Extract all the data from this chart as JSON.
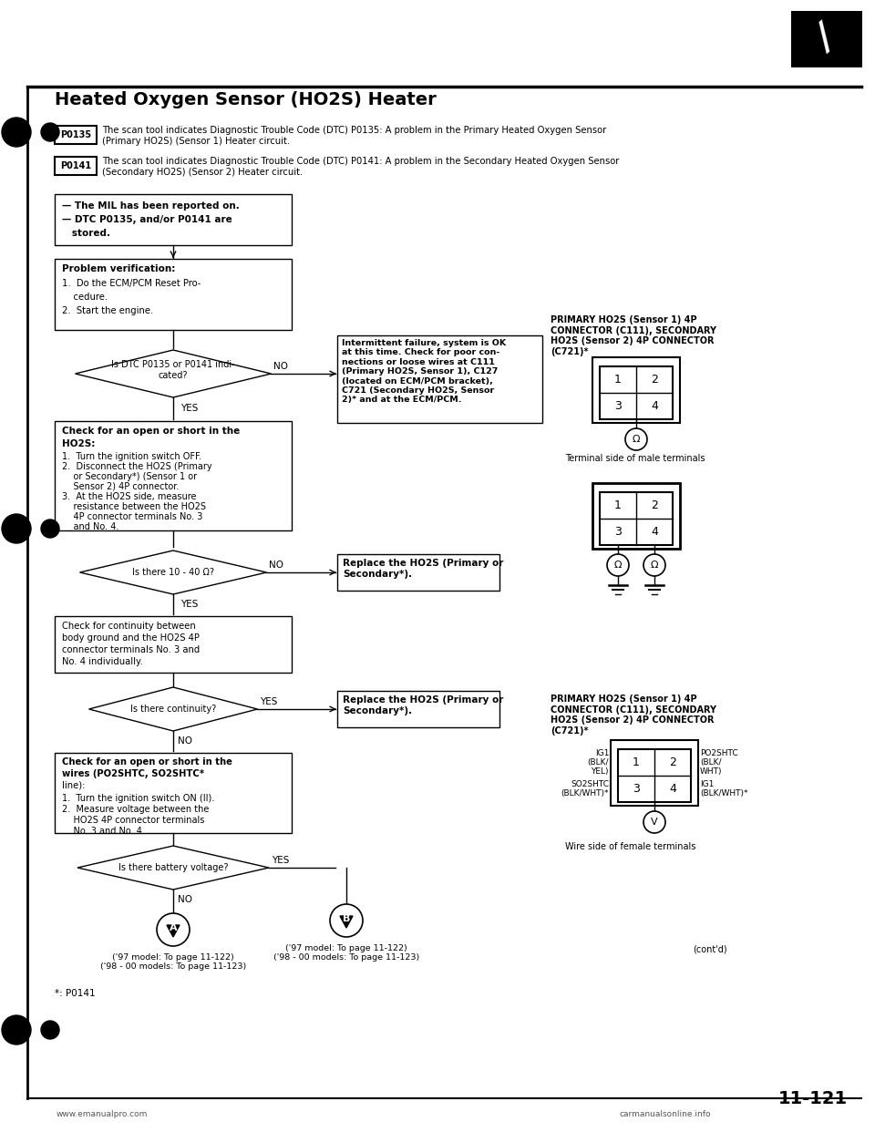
{
  "title": "Heated Oxygen Sensor (HO2S) Heater",
  "bg_color": "#ffffff",
  "page_number": "11-121",
  "dtc_p0135_text": "The scan tool indicates Diagnostic Trouble Code (DTC) P0135: A problem in the Primary Heated Oxygen Sensor\n(Primary HO2S) (Sensor 1) Heater circuit.",
  "dtc_p0141_text": "The scan tool indicates Diagnostic Trouble Code (DTC) P0141: A problem in the Secondary Heated Oxygen Sensor\n(Secondary HO2S) (Sensor 2) Heater circuit.",
  "box1_lines": [
    "— The MIL has been reported on.",
    "— DTC P0135, and/or P0141 are",
    "   stored."
  ],
  "box2_title": "Problem verification:",
  "box2_lines": [
    "1.  Do the ECM/PCM Reset Pro-",
    "    cedure.",
    "2.  Start the engine."
  ],
  "diamond1_text": "Is DTC P0135 or P0141 indi-\ncated?",
  "intermittent_text": "Intermittent failure, system is OK\nat this time. Check for poor con-\nnections or loose wires at C111\n(Primary HO2S, Sensor 1), C127\n(located on ECM/PCM bracket),\nC721 (Secondary HO2S, Sensor\n2)* and at the ECM/PCM.",
  "box3_title_bold": "Check for an open or short in the\nHO2S:",
  "box3_lines": [
    "1.  Turn the ignition switch OFF.",
    "2.  Disconnect the HO2S (Primary",
    "    or Secondary*) (Sensor 1 or",
    "    Sensor 2) 4P connector.",
    "3.  At the HO2S side, measure",
    "    resistance between the HO2S",
    "    4P connector terminals No. 3",
    "    and No. 4."
  ],
  "diamond2_text": "Is there 10 - 40 Ω?",
  "replace_box1_text": "Replace the HO2S (Primary or\nSecondary*).",
  "box4_lines": [
    "Check for continuity between",
    "body ground and the HO2S 4P",
    "connector terminals No. 3 and",
    "No. 4 individually."
  ],
  "diamond3_text": "Is there continuity?",
  "replace_box2_text": "Replace the HO2S (Primary or\nSecondary*).",
  "box5_title_bold": "Check for an open or short in the\nwires (PO2SHTC, SO2SHTC*\nline):",
  "box5_lines": [
    "1.  Turn the ignition switch ON (II).",
    "2.  Measure voltage between the",
    "    HO2S 4P connector terminals",
    "    No. 3 and No. 4."
  ],
  "diamond4_text": "Is there battery voltage?",
  "footer_left": "('97 model: To page 11-122)\n('98 - 00 models: To page 11-123)",
  "footer_mid": "('97 model: To page 11-122)\n('98 - 00 models: To page 11-123)",
  "footer_right": "(cont'd)",
  "footnote": "*: P0141",
  "connector_label1": "PRIMARY HO2S (Sensor 1) 4P\nCONNECTOR (C111), SECONDARY\nHO2S (Sensor 2) 4P CONNECTOR\n(C721)*",
  "connector_label2": "PRIMARY HO2S (Sensor 1) 4P\nCONNECTOR (C111), SECONDARY\nHO2S (Sensor 2) 4P CONNECTOR\n(C721)*",
  "terminal_label": "Terminal side of male terminals",
  "wire_label": "Wire side of female terminals",
  "website_left": "www.emanualpro.com",
  "website_right": "carmanualsonline.info"
}
